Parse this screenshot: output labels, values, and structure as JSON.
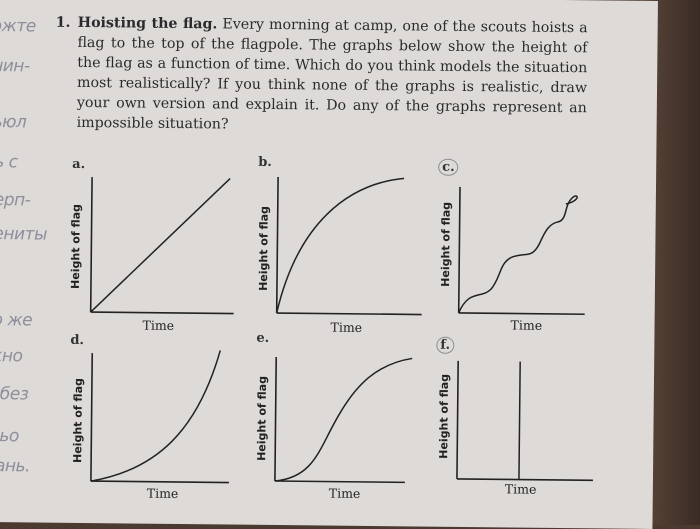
{
  "margin_notes": [
    "ожте",
    "чин-",
    "ьюл",
    "ь с",
    "ерп-",
    "ениты",
    "о же",
    "кно",
    "без",
    "ьо",
    "ань."
  ],
  "problem": {
    "number": "1.",
    "title": "Hoisting the flag.",
    "text": "Every morning at camp, one of the scouts hoists a flag to the top of the flagpole. The graphs below show the height of the flag as a function of time. Which do you think models the situation most realistically? If you think none of the graphs is realistic, draw your own version and explain it. Do any of the graphs represent an impossible situation?"
  },
  "graphs": [
    {
      "letter": "a.",
      "ylabel": "Height of flag",
      "xlabel": "Time",
      "curve": "linear"
    },
    {
      "letter": "b.",
      "ylabel": "Height of flag",
      "xlabel": "Time",
      "curve": "concave"
    },
    {
      "letter": "c.",
      "ylabel": "Height of flag",
      "xlabel": "Time",
      "curve": "wavy"
    },
    {
      "letter": "d.",
      "ylabel": "Height of flag",
      "xlabel": "Time",
      "curve": "convex"
    },
    {
      "letter": "e.",
      "ylabel": "Height of flag",
      "xlabel": "Time",
      "curve": "s-curve"
    },
    {
      "letter": "f.",
      "ylabel": "Height of flag",
      "xlabel": "Time",
      "curve": "vertical"
    }
  ]
}
